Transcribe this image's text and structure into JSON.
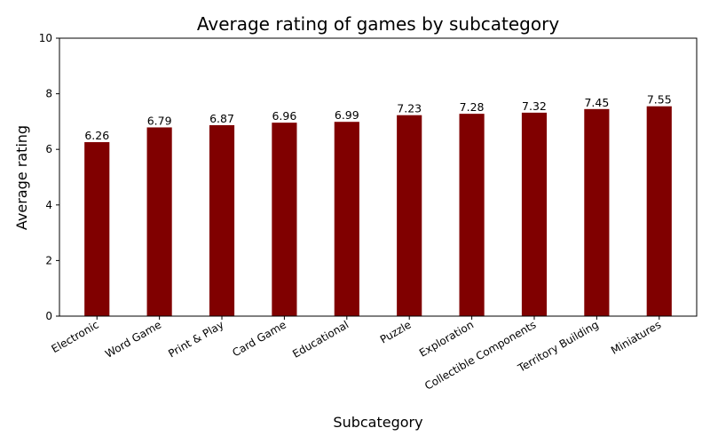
{
  "chart_data": {
    "type": "bar",
    "title": "Average rating of games by subcategory",
    "xlabel": "Subcategory",
    "ylabel": "Average rating",
    "categories": [
      "Electronic",
      "Word Game",
      "Print & Play",
      "Card Game",
      "Educational",
      "Puzzle",
      "Exploration",
      "Collectible Components",
      "Territory Building",
      "Miniatures"
    ],
    "values": [
      6.26,
      6.79,
      6.87,
      6.96,
      6.99,
      7.23,
      7.28,
      7.32,
      7.45,
      7.55
    ],
    "data_labels": [
      "6.26",
      "6.79",
      "6.87",
      "6.96",
      "6.99",
      "7.23",
      "7.28",
      "7.32",
      "7.45",
      "7.55"
    ],
    "ylim": [
      0,
      10
    ],
    "yticks": [
      0,
      2,
      4,
      6,
      8,
      10
    ],
    "ytick_labels": [
      "0",
      "2",
      "4",
      "6",
      "8",
      "10"
    ],
    "bar_color": "#800000",
    "grid": false,
    "legend": "none"
  }
}
